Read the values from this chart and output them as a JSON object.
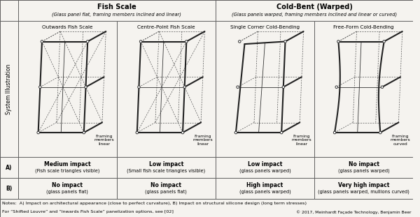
{
  "col1_header_bold": "Fish Scale",
  "col1_header_sub": "(Glass panel flat, framing members inclined and linear)",
  "col2_header_bold": "Cold-Bent (Warped)",
  "col2_header_sub": "(Glass panels warped, framing members inclined and linear or curved)",
  "subcols": [
    "Outwards Fish Scale",
    "Centre-Point Fish Scale",
    "Single Corner Cold-Bending",
    "Free-Form Cold-Bending"
  ],
  "row_A_label": "A)",
  "row_B_label": "B)",
  "row_illus_label": "System Illustration",
  "row_A_values": [
    "Medium impact\n(Fish scale triangles visible)",
    "Low impact\n(Small fish scale triangles visible)",
    "Low impact\n(glass panels warped)",
    "No impact\n(glass panels warped)"
  ],
  "row_B_values": [
    "No impact\n(glass panels flat)",
    "No impact\n(glass panels flat)",
    "High impact\n(glass panels warped)",
    "Very high impact\n(glass panels warped, mullions curved)"
  ],
  "framing_labels": [
    "Framing\nmembers\nlinear",
    "Framing\nmembers\nlinear",
    "Framing\nmembers\nlinear",
    "Framing\nmembers\ncurved"
  ],
  "notes_line1": "Notes:  A) Impact on architectural appearance (close to perfect curvature), B) Impact on structural silicone design (long term stresses)",
  "notes_line2": "For “Shifted Louvre” and “Inwards Fish Scale” panelization options, see [02]",
  "notes_copy": "© 2017, Meinhardt Façade Technology, Benjamin Beer",
  "bg_color": "#f5f3ef",
  "border_color": "#555555"
}
